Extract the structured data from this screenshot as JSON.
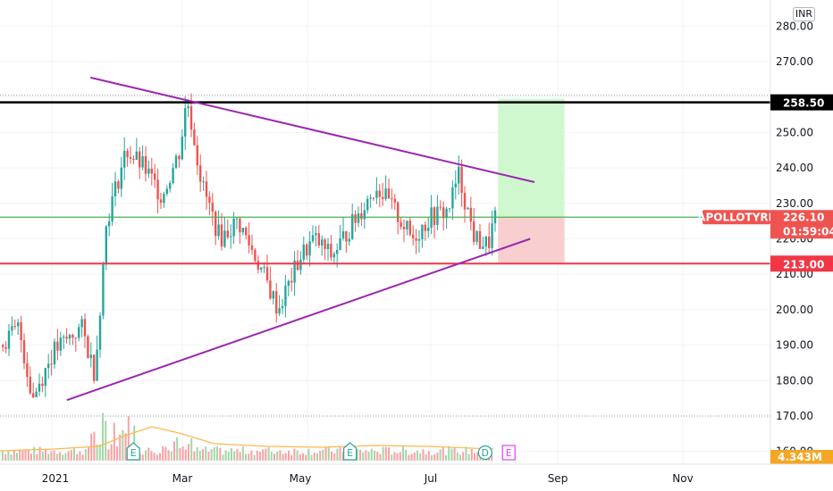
{
  "currency": "INR",
  "chart_data": {
    "type": "candlestick",
    "symbol": "APOLLOTYRE",
    "y_ticks": [
      "280.00",
      "270.00",
      "250.00",
      "240.00",
      "230.00",
      "220.00",
      "210.00",
      "200.00",
      "190.00",
      "180.00",
      "170.00",
      "160.00"
    ],
    "x_ticks": [
      "2021",
      "Mar",
      "May",
      "Jul",
      "Sep",
      "Nov"
    ],
    "ylim": [
      160,
      283
    ],
    "price_labels": [
      {
        "text": "258.50",
        "value": 258.5,
        "color": "#000000",
        "bg": "#000000",
        "fg": "#ffffff",
        "name": "resistance"
      },
      {
        "text": "226.10",
        "value": 226.1,
        "color": "#4caf50",
        "bg": "#ef5350",
        "fg": "#ffffff",
        "name": "current-price",
        "sub": "01:59:04",
        "tag": "APOLLOTYRE"
      },
      {
        "text": "213.00",
        "value": 213.0,
        "color": "#f23645",
        "bg": "#f23645",
        "fg": "#ffffff",
        "name": "stop-loss"
      }
    ],
    "volume_label": "4.343M",
    "annotations": {
      "resistance_line": 258.5,
      "current_line": 226.1,
      "stop_line": 213.0,
      "upper_trendline": {
        "from": {
          "x": "2021-01-19",
          "y": 265.5
        },
        "to": {
          "x": "2021-08-14",
          "y": 236.0
        }
      },
      "lower_trendline": {
        "from": {
          "x": "2021-01-08",
          "y": 174.5
        },
        "to": {
          "x": "2021-08-12",
          "y": 220.0
        }
      },
      "target_zone": {
        "from": "2021-07-28",
        "to": "2021-08-28",
        "top": 259.5,
        "bottom": 226.1
      },
      "stop_zone": {
        "from": "2021-07-28",
        "to": "2021-08-28",
        "top": 226.1,
        "bottom": 213.0
      },
      "events": [
        {
          "label": "E",
          "date": "2021-02-08"
        },
        {
          "label": "E",
          "date": "2021-05-20"
        },
        {
          "label": "D",
          "date": "2021-07-22"
        },
        {
          "label": "E",
          "date": "2021-08-02"
        }
      ]
    }
  }
}
